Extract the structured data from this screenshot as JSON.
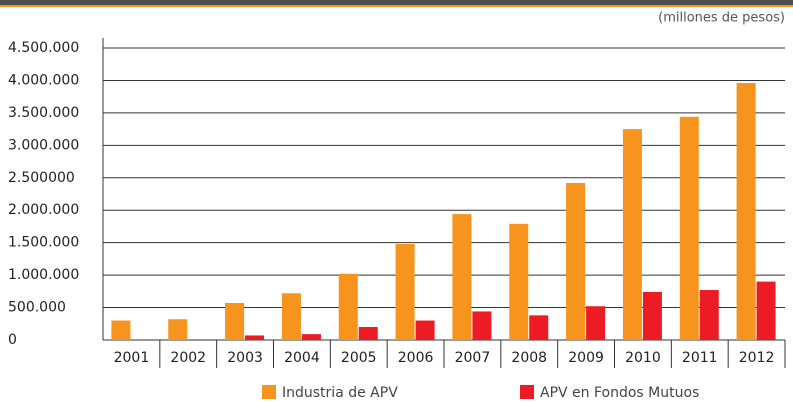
{
  "chart_data": {
    "type": "bar",
    "unit_label": "(millones de pesos)",
    "categories": [
      "2001",
      "2002",
      "2003",
      "2004",
      "2005",
      "2006",
      "2007",
      "2008",
      "2009",
      "2010",
      "2011",
      "2012"
    ],
    "series": [
      {
        "name": "Industria de APV",
        "color": "#f7941d",
        "values": [
          300000,
          320000,
          570000,
          720000,
          1020000,
          1480000,
          1940000,
          1790000,
          2420000,
          3250000,
          3440000,
          3960000
        ]
      },
      {
        "name": "APV en Fondos Mutuos",
        "color": "#ed1c24",
        "values": [
          0,
          0,
          70000,
          90000,
          200000,
          300000,
          440000,
          380000,
          520000,
          740000,
          770000,
          900000
        ]
      }
    ],
    "ylim": [
      0,
      4500000
    ],
    "yticks": [
      0,
      {
        "value": 500000,
        "label": "500.000"
      },
      {
        "value": 1000000,
        "label": "1.000.000"
      },
      {
        "value": 1500000,
        "label": "1.500.000"
      },
      {
        "value": 2000000,
        "label": "2.000.000"
      },
      {
        "value": 2500000,
        "label": "2.500000"
      },
      {
        "value": 3000000,
        "label": "3.000.000"
      },
      {
        "value": 3500000,
        "label": "3.500.000"
      },
      {
        "value": 4000000,
        "label": "4.000.000"
      },
      {
        "value": 4500000,
        "label": "4.500.000"
      }
    ],
    "grid": true
  }
}
